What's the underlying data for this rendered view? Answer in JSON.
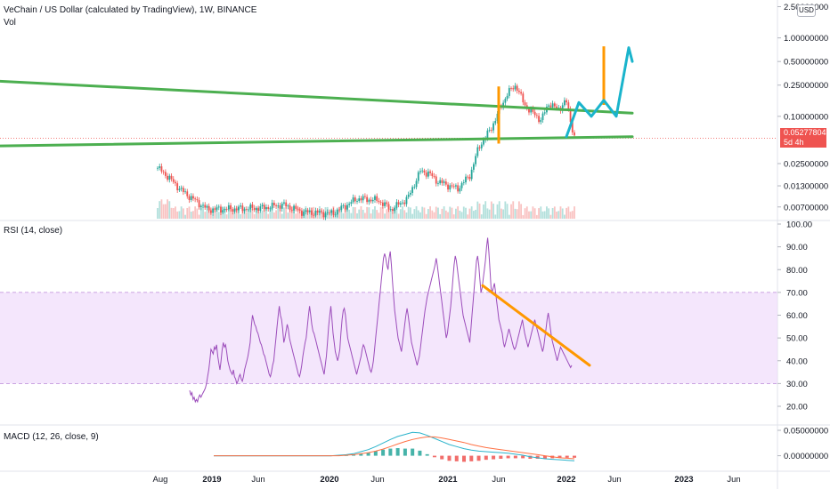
{
  "header": {
    "symbol_title": "VeChain / US Dollar (calculated by TradingView), 1W, BINANCE",
    "volume_label": "Vol",
    "rsi_label": "RSI (14, close)",
    "macd_label": "MACD (12, 26, close, 9)"
  },
  "price_scale": {
    "currency": "USD",
    "last_price": "0.05277804",
    "countdown": "5d 4h"
  },
  "colors": {
    "up": "#26a69a",
    "down": "#ef5350",
    "rsi_line": "#9c4dbb",
    "rsi_band": "#efdcfb",
    "trendline_green": "#4caf50",
    "trendline_orange": "#ff9800",
    "projection_cyan": "#1ab4cc",
    "macd_line": "#2ab3cb",
    "signal_line": "#ff7043"
  },
  "chart_data": [
    {
      "type": "candlestick",
      "title": "VeChain / US Dollar (calculated by TradingView), 1W, BINANCE",
      "y_scale": "log",
      "y_ticks": [
        "2.50000000",
        "1.00000000",
        "0.50000000",
        "0.25000000",
        "0.10000000",
        "0.05277804",
        "0.02500000",
        "0.01300000",
        "0.00700000"
      ],
      "x_ticks": [
        "Aug",
        "2019",
        "Jun",
        "2020",
        "Jun",
        "2021",
        "Jun",
        "2022",
        "Jun",
        "2023",
        "Jun"
      ],
      "last_price": 0.05277804,
      "series": [
        {
          "name": "Price",
          "type": "candlestick"
        },
        {
          "name": "Vol",
          "type": "histogram"
        }
      ],
      "annotations": [
        {
          "type": "trendline",
          "color": "green",
          "from": [
            "2021-02",
            0.28
          ],
          "to": [
            "2022-08",
            0.11
          ]
        },
        {
          "type": "trendline",
          "color": "green",
          "from": [
            "2021-02",
            0.042
          ],
          "to": [
            "2022-08",
            0.055
          ]
        },
        {
          "type": "measure",
          "color": "orange",
          "x": "2021-06",
          "y": [
            0.045,
            0.24
          ]
        },
        {
          "type": "measure",
          "color": "orange",
          "x": "2022-04",
          "y": [
            0.14,
            0.78
          ]
        },
        {
          "type": "projection_arrow",
          "color": "cyan",
          "path": [
            [
              "2022-01",
              0.055
            ],
            [
              "2022-02",
              0.15
            ],
            [
              "2022-03",
              0.1
            ],
            [
              "2022-04",
              0.16
            ],
            [
              "2022-05",
              0.1
            ],
            [
              "2022-07",
              0.75
            ],
            [
              "2022-08",
              0.5
            ]
          ]
        }
      ]
    },
    {
      "type": "line",
      "title": "RSI (14, close)",
      "y_ticks": [
        "100.00",
        "90.00",
        "80.00",
        "70.00",
        "60.00",
        "50.00",
        "40.00",
        "30.00",
        "20.00"
      ],
      "ylim": [
        20,
        100
      ],
      "band": [
        30,
        70
      ],
      "series": [
        {
          "name": "RSI",
          "values": [
            27,
            25,
            26,
            23,
            24,
            22,
            23,
            22,
            24,
            25,
            24,
            25,
            26,
            27,
            28,
            30,
            33,
            36,
            40,
            45,
            44,
            43,
            46,
            45,
            47,
            42,
            39,
            36,
            40,
            45,
            48,
            46,
            47,
            44,
            40,
            38,
            36,
            35,
            34,
            36,
            33,
            32,
            30,
            31,
            33,
            34,
            32,
            31,
            33,
            36,
            38,
            40,
            42,
            45,
            48,
            55,
            60,
            58,
            56,
            55,
            53,
            52,
            50,
            48,
            47,
            45,
            43,
            42,
            40,
            38,
            36,
            34,
            33,
            35,
            38,
            40,
            45,
            50,
            55,
            60,
            64,
            60,
            58,
            54,
            48,
            50,
            53,
            56,
            54,
            50,
            48,
            46,
            44,
            42,
            40,
            38,
            36,
            34,
            33,
            35,
            38,
            42,
            45,
            48,
            50,
            55,
            60,
            64,
            60,
            56,
            53,
            52,
            50,
            48,
            46,
            44,
            42,
            40,
            38,
            36,
            34,
            38,
            42,
            48,
            55,
            60,
            64,
            58,
            52,
            48,
            44,
            42,
            40,
            42,
            45,
            52,
            58,
            62,
            63,
            60,
            55,
            50,
            48,
            46,
            44,
            42,
            40,
            38,
            36,
            34,
            36,
            38,
            40,
            42,
            45,
            47,
            46,
            44,
            42,
            40,
            38,
            36,
            35,
            37,
            40,
            45,
            50,
            55,
            60,
            65,
            70,
            75,
            80,
            85,
            87,
            85,
            82,
            80,
            85,
            88,
            82,
            75,
            68,
            62,
            58,
            54,
            50,
            48,
            46,
            44,
            48,
            52,
            56,
            60,
            63,
            60,
            56,
            52,
            48,
            46,
            44,
            42,
            40,
            38,
            40,
            42,
            46,
            50,
            54,
            58,
            62,
            65,
            68,
            70,
            72,
            74,
            76,
            78,
            80,
            82,
            85,
            82,
            78,
            74,
            70,
            66,
            62,
            58,
            54,
            50,
            52,
            56,
            60,
            64,
            70,
            76,
            82,
            86,
            84,
            80,
            76,
            72,
            68,
            64,
            60,
            58,
            56,
            54,
            52,
            50,
            48,
            54,
            60,
            66,
            72,
            78,
            84,
            86,
            82,
            76,
            70,
            72,
            76,
            80,
            84,
            90,
            94,
            88,
            80,
            72,
            70,
            72,
            74,
            70,
            66,
            62,
            58,
            56,
            54,
            52,
            48,
            46,
            48,
            50,
            52,
            54,
            52,
            50,
            48,
            46,
            45,
            46,
            48,
            50,
            52,
            54,
            56,
            58,
            55,
            52,
            50,
            48,
            46,
            48,
            50,
            52,
            54,
            56,
            58,
            56,
            54,
            52,
            50,
            48,
            46,
            44,
            46,
            50,
            54,
            58,
            61,
            58,
            54,
            50,
            48,
            46,
            44,
            42,
            40,
            42,
            44,
            46,
            45,
            44,
            43,
            42,
            41,
            40,
            39,
            38,
            37,
            38
          ]
        }
      ],
      "annotations": [
        {
          "type": "trendline",
          "color": "orange",
          "from": [
            "2021-05",
            73
          ],
          "to": [
            "2022-03",
            38
          ]
        }
      ]
    },
    {
      "type": "line",
      "title": "MACD (12, 26, close, 9)",
      "y_ticks": [
        "0.05000000",
        "0.00000000"
      ],
      "ylim": [
        -0.02,
        0.05
      ],
      "series": [
        {
          "name": "MACD",
          "values": [
            0,
            0,
            0,
            0,
            0,
            0,
            0,
            0,
            0,
            0,
            0,
            0,
            0,
            0,
            0,
            0,
            0,
            0.001,
            0.002,
            0.004,
            0.008,
            0.012,
            0.018,
            0.025,
            0.032,
            0.038,
            0.042,
            0.046,
            0.045,
            0.04,
            0.034,
            0.028,
            0.022,
            0.018,
            0.014,
            0.011,
            0.009,
            0.008,
            0.007,
            0.006,
            0.005,
            0.003,
            0.001,
            -0.002,
            -0.004,
            -0.006,
            -0.007,
            -0.008,
            -0.009,
            -0.01
          ]
        },
        {
          "name": "Signal",
          "values": [
            0,
            0,
            0,
            0,
            0,
            0,
            0,
            0,
            0,
            0,
            0,
            0,
            0,
            0,
            0,
            0,
            0,
            0,
            0.001,
            0.002,
            0.004,
            0.006,
            0.009,
            0.013,
            0.018,
            0.023,
            0.028,
            0.032,
            0.035,
            0.037,
            0.037,
            0.035,
            0.032,
            0.029,
            0.026,
            0.022,
            0.019,
            0.016,
            0.014,
            0.012,
            0.01,
            0.008,
            0.006,
            0.004,
            0.002,
            0,
            -0.002,
            -0.004,
            -0.005,
            -0.006
          ]
        },
        {
          "name": "Histogram",
          "values": [
            0,
            0,
            0,
            0,
            0,
            0,
            0,
            0,
            0,
            0,
            0,
            0,
            0,
            0,
            0,
            0,
            0,
            0.001,
            0.001,
            0.002,
            0.004,
            0.006,
            0.009,
            0.012,
            0.014,
            0.015,
            0.014,
            0.014,
            0.01,
            0.003,
            -0.003,
            -0.007,
            -0.01,
            -0.011,
            -0.012,
            -0.011,
            -0.01,
            -0.008,
            -0.007,
            -0.006,
            -0.005,
            -0.005,
            -0.005,
            -0.006,
            -0.006,
            -0.006,
            -0.005,
            -0.004,
            -0.004,
            -0.004
          ]
        }
      ]
    }
  ]
}
